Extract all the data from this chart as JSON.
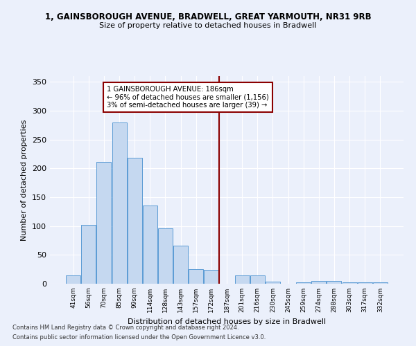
{
  "title1": "1, GAINSBOROUGH AVENUE, BRADWELL, GREAT YARMOUTH, NR31 9RB",
  "title2": "Size of property relative to detached houses in Bradwell",
  "xlabel": "Distribution of detached houses by size in Bradwell",
  "ylabel": "Number of detached properties",
  "categories": [
    "41sqm",
    "56sqm",
    "70sqm",
    "85sqm",
    "99sqm",
    "114sqm",
    "128sqm",
    "143sqm",
    "157sqm",
    "172sqm",
    "187sqm",
    "201sqm",
    "216sqm",
    "230sqm",
    "245sqm",
    "259sqm",
    "274sqm",
    "288sqm",
    "303sqm",
    "317sqm",
    "332sqm"
  ],
  "values": [
    14,
    102,
    211,
    280,
    218,
    136,
    96,
    66,
    25,
    24,
    0,
    14,
    15,
    4,
    0,
    3,
    5,
    5,
    2,
    3,
    3
  ],
  "bar_color": "#C5D8F0",
  "bar_edge_color": "#5B9BD5",
  "vline_index": 9.5,
  "vline_color": "#8B0000",
  "annotation_text": "1 GAINSBOROUGH AVENUE: 186sqm\n← 96% of detached houses are smaller (1,156)\n3% of semi-detached houses are larger (39) →",
  "ylim": [
    0,
    360
  ],
  "yticks": [
    0,
    50,
    100,
    150,
    200,
    250,
    300,
    350
  ],
  "background_color": "#EBF0FB",
  "grid_color": "#FFFFFF",
  "footer1": "Contains HM Land Registry data © Crown copyright and database right 2024.",
  "footer2": "Contains public sector information licensed under the Open Government Licence v3.0."
}
